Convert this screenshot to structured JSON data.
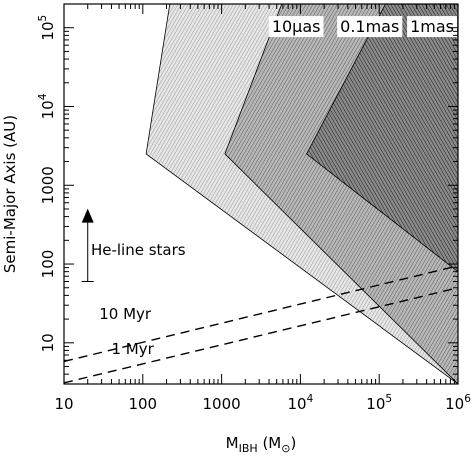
{
  "chart_data": {
    "type": "area",
    "xscale": "log",
    "yscale": "log",
    "xlim": [
      10,
      1000000
    ],
    "ylim": [
      3,
      200000
    ],
    "x_ticks": [
      {
        "base": "10",
        "exp": ""
      },
      {
        "base": "100",
        "exp": ""
      },
      {
        "base": "1000",
        "exp": ""
      },
      {
        "base": "10",
        "exp": "4"
      },
      {
        "base": "10",
        "exp": "5"
      },
      {
        "base": "10",
        "exp": "6"
      }
    ],
    "y_ticks": [
      {
        "base": "10",
        "exp": ""
      },
      {
        "base": "100",
        "exp": ""
      },
      {
        "base": "1000",
        "exp": ""
      },
      {
        "base": "10",
        "exp": "4"
      },
      {
        "base": "10",
        "exp": "5"
      }
    ],
    "xlabel": {
      "main": "M",
      "sub": "IBH",
      "unit_open": " (M",
      "unit_sub": "⊙",
      "unit_close": ")"
    },
    "ylabel": "Semi-Major Axis (AU)",
    "grid": false,
    "legend": "none",
    "regions": [
      {
        "label": "10μas",
        "label_pos": [
          18000,
          88000
        ],
        "fill": "#e6e6e6",
        "hatch": "#9a9a9a",
        "vertices": [
          [
            220,
            200000
          ],
          [
            110,
            2500
          ],
          [
            1000000,
            3
          ],
          [
            1000000,
            200000
          ]
        ]
      },
      {
        "label": "0.1mas",
        "label_pos": [
          180000,
          88000
        ],
        "fill": "#b8b8b8",
        "hatch": "#5a5a5a",
        "vertices": [
          [
            5800,
            200000
          ],
          [
            1100,
            2500
          ],
          [
            1000000,
            3
          ],
          [
            1000000,
            200000
          ]
        ]
      },
      {
        "label": "1mas",
        "label_pos": [
          1400000,
          88000
        ],
        "fill": "#8a8a8a",
        "hatch": "#1a1a1a",
        "vertices": [
          [
            120000,
            200000
          ],
          [
            12000,
            2500
          ],
          [
            1000000,
            80
          ],
          [
            1000000,
            200000
          ]
        ]
      }
    ],
    "lines": [
      {
        "label": "10 Myr",
        "label_pos": [
          28,
          20
        ],
        "style": "dashed",
        "points": [
          [
            10,
            5.8
          ],
          [
            1000000,
            95
          ]
        ]
      },
      {
        "label": "1 Myr",
        "label_pos": [
          40,
          7.2
        ],
        "style": "dashed",
        "points": [
          [
            10,
            3.1
          ],
          [
            1000000,
            50
          ]
        ]
      }
    ],
    "annotations": [
      {
        "label": "He-line stars",
        "arrow_from": [
          20,
          60
        ],
        "arrow_to": [
          20,
          450
        ],
        "label_pos": [
          22,
          150
        ]
      }
    ]
  }
}
